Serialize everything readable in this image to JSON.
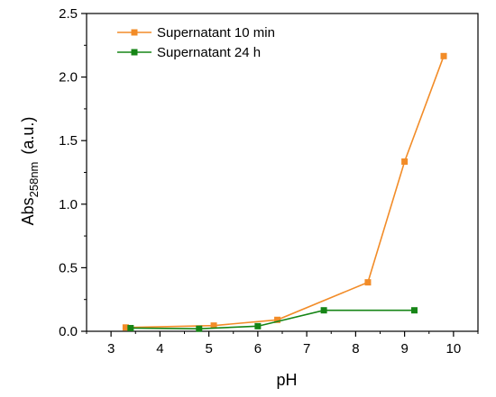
{
  "chart_data": {
    "type": "line",
    "xlabel": "pH",
    "ylabel": {
      "main": "Abs",
      "subscript": "258nm",
      "unit": "(a.u.)"
    },
    "xlim": [
      2.5,
      10.5
    ],
    "ylim": [
      0.0,
      2.5
    ],
    "xticks": [
      3,
      4,
      5,
      6,
      7,
      8,
      9,
      10
    ],
    "yticks": [
      0.0,
      0.5,
      1.0,
      1.5,
      2.0,
      2.5
    ],
    "ytick_labels": [
      "0.0",
      "0.5",
      "1.0",
      "1.5",
      "2.0",
      "2.5"
    ],
    "grid": false,
    "legend_position": "top-left",
    "series": [
      {
        "name": "Supernatant 10 min",
        "color": "#F28C28",
        "marker": "square",
        "x": [
          3.3,
          5.1,
          6.4,
          8.25,
          9.0,
          9.8
        ],
        "y": [
          0.03,
          0.045,
          0.09,
          0.385,
          1.335,
          2.165
        ]
      },
      {
        "name": "Supernatant 24 h",
        "color": "#168516",
        "marker": "square",
        "x": [
          3.4,
          4.8,
          6.0,
          7.35,
          9.2
        ],
        "y": [
          0.025,
          0.02,
          0.04,
          0.165,
          0.165
        ]
      }
    ]
  }
}
